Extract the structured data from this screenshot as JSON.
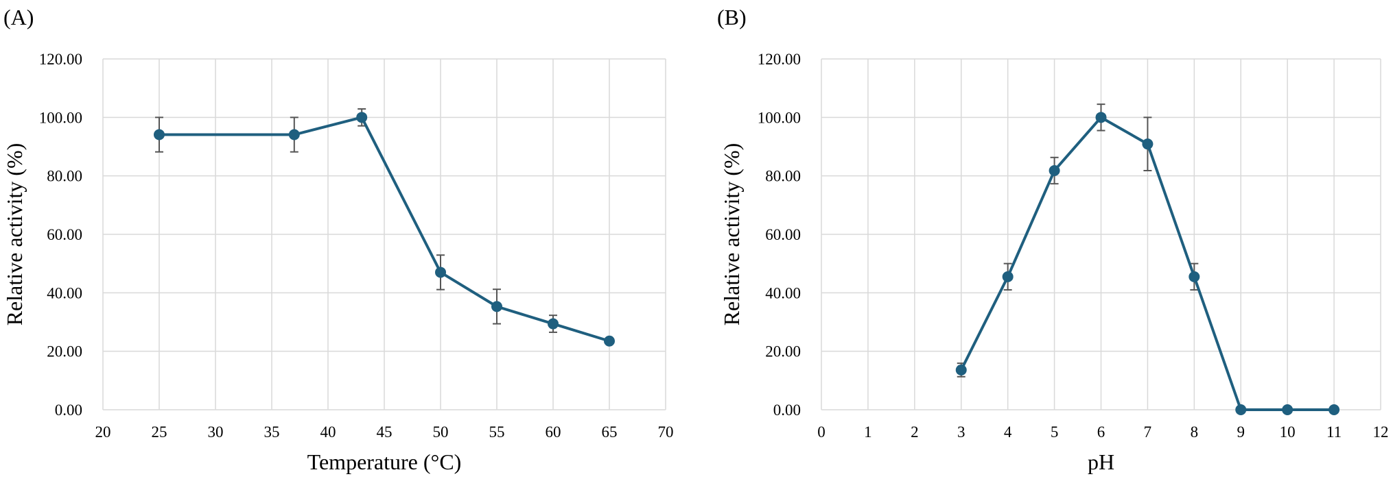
{
  "chart_data": [
    {
      "panel_label": "(A)",
      "type": "line",
      "xlabel": "Temperature (°C)",
      "ylabel": "Relative activity (%)",
      "xlim": [
        20,
        70
      ],
      "xticks": [
        "20",
        "25",
        "30",
        "35",
        "40",
        "45",
        "50",
        "55",
        "60",
        "65",
        "70"
      ],
      "ylim": [
        0,
        120
      ],
      "yticks": [
        "0.00",
        "20.00",
        "40.00",
        "60.00",
        "80.00",
        "100.00",
        "120.00"
      ],
      "grid": true,
      "color": "#1f5f7f",
      "series": [
        {
          "name": "Relative activity",
          "x": [
            25,
            37,
            43,
            50,
            55,
            60,
            65
          ],
          "y": [
            94.1,
            94.1,
            100.0,
            47.0,
            35.3,
            29.4,
            23.5
          ],
          "err": [
            5.9,
            5.9,
            2.9,
            5.9,
            5.9,
            2.9,
            0
          ]
        }
      ]
    },
    {
      "panel_label": "(B)",
      "type": "line",
      "xlabel": "pH",
      "ylabel": "Relative activity (%)",
      "xlim": [
        0,
        12
      ],
      "xticks": [
        "0",
        "1",
        "2",
        "3",
        "4",
        "5",
        "6",
        "7",
        "8",
        "9",
        "10",
        "11",
        "12"
      ],
      "ylim": [
        0,
        120
      ],
      "yticks": [
        "0.00",
        "20.00",
        "40.00",
        "60.00",
        "80.00",
        "100.00",
        "120.00"
      ],
      "grid": true,
      "color": "#1f5f7f",
      "series": [
        {
          "name": "Relative activity",
          "x": [
            3,
            4,
            5,
            6,
            7,
            8,
            9,
            10,
            11
          ],
          "y": [
            13.6,
            45.5,
            81.8,
            100.0,
            90.9,
            45.5,
            0,
            0,
            0
          ],
          "err": [
            2.3,
            4.5,
            4.5,
            4.5,
            9.1,
            4.5,
            0,
            0,
            0
          ]
        }
      ]
    }
  ]
}
